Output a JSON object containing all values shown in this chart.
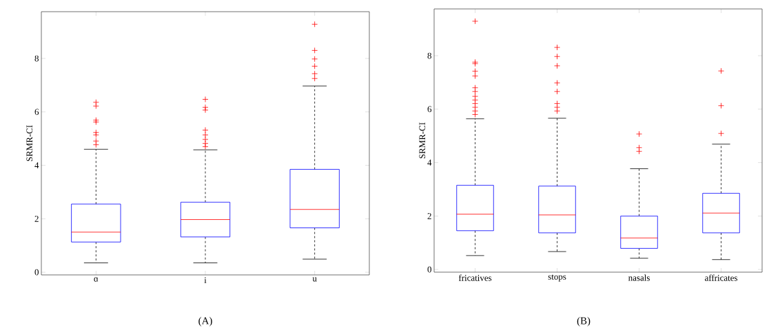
{
  "chart_data": [
    {
      "type": "box",
      "categories": [
        "ɑ",
        "i",
        "u"
      ],
      "ylabel": "SRMR-CI",
      "ylim": [
        -0.1,
        9.75
      ],
      "yticks": [
        0,
        2,
        4,
        6,
        8
      ],
      "marker": "cross",
      "annotations": [
        "(A)"
      ],
      "series": [
        {
          "color": "#0000ff",
          "boxes": [
            {
              "low": 0.35,
              "q1": 1.13,
              "median": 1.5,
              "q3": 2.55,
              "high": 4.6,
              "outliers": [
                6.36,
                6.22,
                5.69,
                5.62,
                5.23,
                5.14,
                4.91,
                4.77
              ]
            },
            {
              "low": 0.35,
              "q1": 1.32,
              "median": 1.97,
              "q3": 2.62,
              "high": 4.58,
              "outliers": [
                6.47,
                6.17,
                6.07,
                5.32,
                5.14,
                4.97,
                4.82,
                4.7
              ]
            },
            {
              "low": 0.49,
              "q1": 1.66,
              "median": 2.35,
              "q3": 3.85,
              "high": 6.97,
              "outliers": [
                9.28,
                8.3,
                7.98,
                7.71,
                7.43,
                7.25
              ]
            }
          ]
        }
      ]
    },
    {
      "type": "box",
      "categories": [
        "fricatives",
        "stops",
        "nasals",
        "affricates"
      ],
      "ylabel": "SRMR-CI",
      "ylim": [
        -0.1,
        9.75
      ],
      "yticks": [
        0,
        2,
        4,
        6,
        8
      ],
      "marker": "cross",
      "annotations": [
        "(B)"
      ],
      "series": [
        {
          "color": "#0000ff",
          "boxes": [
            {
              "low": 0.52,
              "q1": 1.45,
              "median": 2.07,
              "q3": 3.15,
              "high": 5.64,
              "outliers": [
                9.29,
                7.76,
                7.7,
                7.42,
                7.24,
                6.8,
                6.66,
                6.48,
                6.34,
                6.21,
                6.07,
                5.93,
                5.8
              ]
            },
            {
              "low": 0.67,
              "q1": 1.37,
              "median": 2.04,
              "q3": 3.12,
              "high": 5.66,
              "outliers": [
                8.31,
                7.97,
                7.62,
                6.98,
                6.66,
                6.21,
                6.07,
                5.93
              ]
            },
            {
              "low": 0.42,
              "q1": 0.79,
              "median": 1.18,
              "q3": 2.0,
              "high": 3.77,
              "outliers": [
                5.07,
                4.56,
                4.42
              ]
            },
            {
              "low": 0.37,
              "q1": 1.37,
              "median": 2.11,
              "q3": 2.85,
              "high": 4.69,
              "outliers": [
                7.43,
                6.13,
                5.09
              ]
            }
          ]
        }
      ]
    }
  ]
}
